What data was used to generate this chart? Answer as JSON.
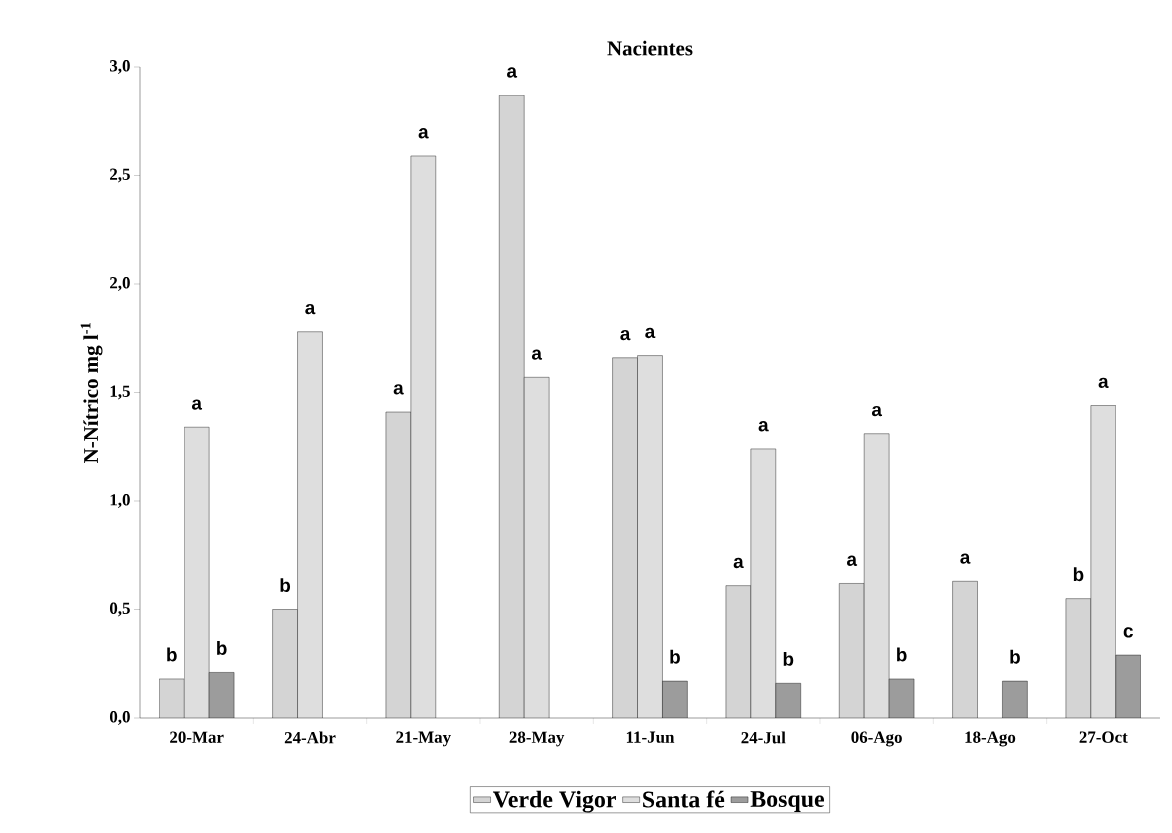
{
  "chart_data": {
    "type": "bar",
    "title": "Nacientes",
    "ylabel": "N-Nítrico mg l$^{-1}$",
    "categories": [
      "20-Mar",
      "24-Abr",
      "21-May",
      "28-May",
      "11-Jun",
      "24-Jul",
      "06-Ago",
      "18-Ago",
      "27-Oct"
    ],
    "series": [
      {
        "name": "Verde Vigor",
        "color": "#d4d4d4",
        "values": [
          0.18,
          0.5,
          1.41,
          2.87,
          1.66,
          0.61,
          0.62,
          0.63,
          0.55
        ],
        "value_labels": [
          "b",
          "b",
          "a",
          "a",
          "a",
          "a",
          "a",
          "a",
          "b"
        ]
      },
      {
        "name": "Santa fé",
        "color": "#dedede",
        "values": [
          1.34,
          1.78,
          2.59,
          1.57,
          1.67,
          1.24,
          1.31,
          null,
          1.44
        ],
        "value_labels": [
          "a",
          "a",
          "a",
          "a",
          "a",
          "a",
          "a",
          null,
          "a"
        ]
      },
      {
        "name": "Bosque",
        "color": "#9c9c9c",
        "values": [
          0.21,
          null,
          null,
          null,
          0.17,
          0.16,
          0.18,
          0.17,
          0.29
        ],
        "value_labels": [
          "b",
          null,
          null,
          null,
          "b",
          "b",
          "b",
          "b",
          "c"
        ]
      }
    ],
    "ylim": [
      0,
      3
    ],
    "yticks": [
      {
        "value": 0,
        "label": "0,0"
      },
      {
        "value": 0.5,
        "label": "0,5"
      },
      {
        "value": 1,
        "label": "1,0"
      },
      {
        "value": 1.5,
        "label": "1,5"
      },
      {
        "value": 2,
        "label": "2,0"
      },
      {
        "value": 2.5,
        "label": "2,5"
      },
      {
        "value": 3,
        "label": "3,0"
      }
    ],
    "grid": false,
    "legend": "bottom"
  }
}
